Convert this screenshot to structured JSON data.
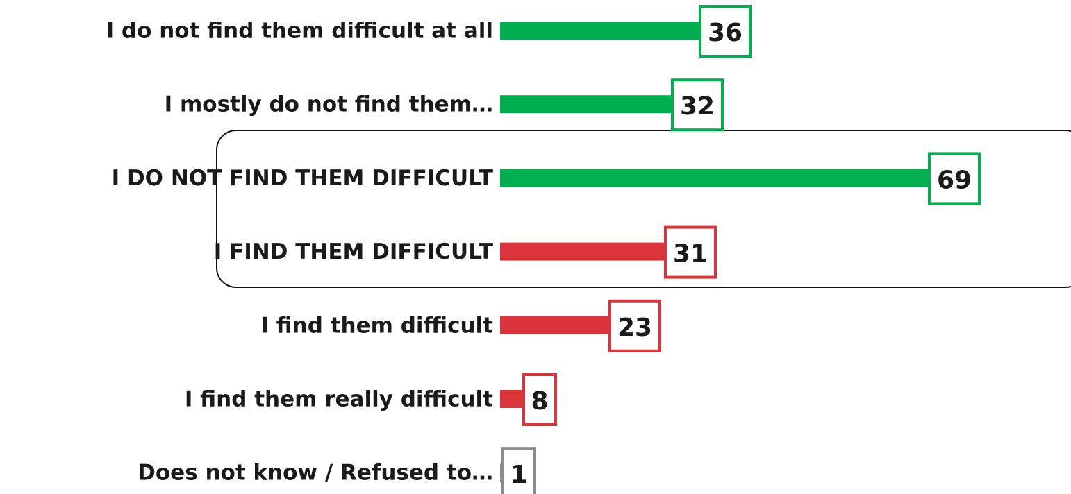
{
  "chart_data": {
    "type": "bar",
    "categories": [
      "I do not find them difficult at all",
      "I mostly do not find them…",
      "I DO NOT FIND THEM DIFFICULT",
      "I FIND THEM DIFFICULT",
      "I find them difficult",
      "I find them really difficult",
      "Does not know / Refused to…"
    ],
    "values": [
      36,
      32,
      69,
      31,
      23,
      8,
      1
    ],
    "colors": [
      "#00b050",
      "#00b050",
      "#00b050",
      "#dc343b",
      "#dc343b",
      "#dc343b",
      "#8c8c8c"
    ]
  }
}
